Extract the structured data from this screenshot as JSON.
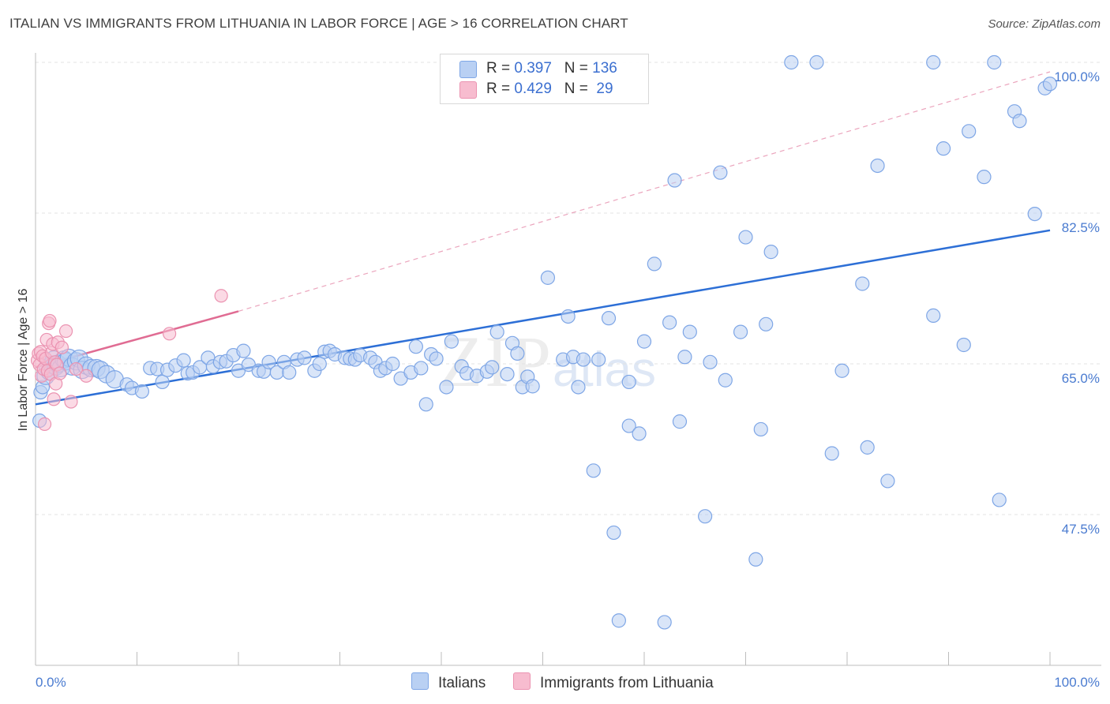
{
  "title": "ITALIAN VS IMMIGRANTS FROM LITHUANIA IN LABOR FORCE | AGE > 16 CORRELATION CHART",
  "source": "Source: ZipAtlas.com",
  "watermark": {
    "zip": "ZIP",
    "atlas": "atlas"
  },
  "colors": {
    "blue": "#4a86e8",
    "blue_fill": "#b9d0f3",
    "pink": "#e8709a",
    "pink_fill": "#f7bccf",
    "tick": "#4a7bd0"
  },
  "legend": {
    "rows": [
      {
        "r_label": "R = ",
        "r_value": "0.397",
        "n_label": "N = ",
        "n_value": "136"
      },
      {
        "r_label": "R = ",
        "r_value": "0.429",
        "n_label": "N = ",
        "n_value": " 29"
      }
    ]
  },
  "bottom_legend": {
    "italians": "Italians",
    "lithuania": "Immigrants from Lithuania"
  },
  "chart_data": {
    "type": "scatter",
    "title": "ITALIAN VS IMMIGRANTS FROM LITHUANIA IN LABOR FORCE | AGE > 16 CORRELATION CHART",
    "xlabel": "",
    "ylabel": "In Labor Force | Age > 16",
    "x_tick_labels": [
      "0.0%",
      "100.0%"
    ],
    "y_tick_labels": [
      "100.0%",
      "82.5%",
      "65.0%",
      "47.5%"
    ],
    "y_ticks": [
      100.0,
      82.5,
      65.0,
      47.5
    ],
    "xlim": [
      0,
      100
    ],
    "ylim": [
      30,
      102
    ],
    "grid": true,
    "legend_position": "top-center",
    "series": [
      {
        "name": "Italians",
        "color": "#4a86e8",
        "trend": {
          "x": [
            0,
            100
          ],
          "y": [
            60.3,
            80.5
          ]
        },
        "points": [
          [
            0.4,
            58.4
          ],
          [
            0.5,
            61.7
          ],
          [
            0.7,
            62.3
          ],
          [
            1.0,
            63.6
          ],
          [
            1.2,
            64.6
          ],
          [
            1.4,
            64.1
          ],
          [
            1.6,
            64.9
          ],
          [
            1.8,
            65.5
          ],
          [
            2.0,
            64.7
          ],
          [
            2.2,
            65.0
          ],
          [
            2.5,
            64.5
          ],
          [
            2.8,
            65.5
          ],
          [
            3.0,
            65.3
          ],
          [
            3.3,
            65.7
          ],
          [
            3.6,
            64.7
          ],
          [
            4.0,
            65.3
          ],
          [
            4.3,
            65.6
          ],
          [
            4.6,
            64.3
          ],
          [
            5.0,
            64.8
          ],
          [
            5.5,
            64.5
          ],
          [
            6.0,
            64.5
          ],
          [
            6.4,
            64.3
          ],
          [
            7.0,
            63.8
          ],
          [
            7.8,
            63.2
          ],
          [
            9.0,
            62.6
          ],
          [
            9.5,
            62.2
          ],
          [
            10.5,
            61.8
          ],
          [
            11.3,
            64.5
          ],
          [
            12.0,
            64.4
          ],
          [
            12.5,
            62.9
          ],
          [
            13.0,
            64.3
          ],
          [
            13.8,
            64.8
          ],
          [
            14.6,
            65.4
          ],
          [
            15.0,
            63.9
          ],
          [
            15.5,
            64.0
          ],
          [
            16.2,
            64.6
          ],
          [
            17.0,
            65.7
          ],
          [
            17.5,
            64.7
          ],
          [
            18.2,
            65.2
          ],
          [
            18.8,
            65.3
          ],
          [
            19.5,
            66.0
          ],
          [
            20.0,
            64.2
          ],
          [
            20.5,
            66.5
          ],
          [
            21.0,
            64.9
          ],
          [
            22.0,
            64.2
          ],
          [
            22.5,
            64.1
          ],
          [
            23.0,
            65.2
          ],
          [
            23.8,
            64.0
          ],
          [
            24.5,
            65.2
          ],
          [
            25.0,
            64.0
          ],
          [
            25.8,
            65.5
          ],
          [
            26.5,
            65.7
          ],
          [
            27.5,
            64.2
          ],
          [
            28.0,
            65.0
          ],
          [
            28.5,
            66.4
          ],
          [
            29.0,
            66.5
          ],
          [
            29.5,
            66.1
          ],
          [
            30.5,
            65.7
          ],
          [
            31.0,
            65.6
          ],
          [
            31.5,
            65.5
          ],
          [
            32.0,
            66.0
          ],
          [
            33.0,
            65.7
          ],
          [
            33.5,
            65.2
          ],
          [
            34.0,
            64.2
          ],
          [
            34.5,
            64.5
          ],
          [
            35.2,
            65.0
          ],
          [
            36.0,
            63.3
          ],
          [
            37.0,
            64.0
          ],
          [
            37.5,
            67.0
          ],
          [
            38.0,
            64.5
          ],
          [
            38.5,
            60.3
          ],
          [
            39.0,
            66.1
          ],
          [
            39.5,
            65.6
          ],
          [
            40.5,
            62.3
          ],
          [
            41.0,
            67.6
          ],
          [
            42.0,
            64.7
          ],
          [
            42.5,
            63.9
          ],
          [
            43.5,
            63.6
          ],
          [
            44.5,
            64.1
          ],
          [
            45.0,
            64.6
          ],
          [
            45.5,
            68.7
          ],
          [
            46.5,
            63.8
          ],
          [
            47.0,
            67.4
          ],
          [
            47.5,
            66.2
          ],
          [
            48.0,
            62.3
          ],
          [
            48.5,
            63.5
          ],
          [
            49.0,
            62.4
          ],
          [
            50.5,
            75.0
          ],
          [
            52.0,
            65.5
          ],
          [
            52.5,
            70.5
          ],
          [
            53.0,
            65.8
          ],
          [
            53.5,
            62.3
          ],
          [
            54.0,
            65.5
          ],
          [
            55.0,
            52.6
          ],
          [
            55.5,
            65.5
          ],
          [
            56.5,
            70.3
          ],
          [
            57.0,
            45.4
          ],
          [
            57.5,
            35.2
          ],
          [
            58.5,
            57.8
          ],
          [
            58.5,
            62.9
          ],
          [
            59.5,
            56.9
          ],
          [
            60.0,
            67.6
          ],
          [
            61.0,
            76.6
          ],
          [
            62.0,
            35.0
          ],
          [
            62.5,
            69.8
          ],
          [
            63.0,
            86.3
          ],
          [
            63.5,
            58.3
          ],
          [
            64.0,
            65.8
          ],
          [
            64.5,
            68.7
          ],
          [
            66.0,
            47.3
          ],
          [
            66.5,
            65.2
          ],
          [
            67.5,
            87.2
          ],
          [
            68.0,
            63.1
          ],
          [
            69.5,
            68.7
          ],
          [
            70.0,
            79.7
          ],
          [
            71.0,
            42.3
          ],
          [
            71.5,
            57.4
          ],
          [
            72.0,
            69.6
          ],
          [
            72.5,
            78.0
          ],
          [
            74.5,
            100.0
          ],
          [
            77.0,
            100.0
          ],
          [
            78.5,
            54.6
          ],
          [
            79.5,
            64.2
          ],
          [
            81.5,
            74.3
          ],
          [
            82.0,
            55.3
          ],
          [
            83.0,
            88.0
          ],
          [
            84.0,
            51.4
          ],
          [
            88.5,
            100.0
          ],
          [
            88.5,
            70.6
          ],
          [
            89.5,
            90.0
          ],
          [
            91.5,
            67.2
          ],
          [
            93.5,
            86.7
          ],
          [
            94.5,
            100.0
          ],
          [
            95.0,
            49.2
          ],
          [
            96.5,
            94.3
          ],
          [
            98.5,
            82.4
          ],
          [
            99.5,
            97.0
          ],
          [
            97.0,
            93.2
          ],
          [
            92.0,
            92.0
          ],
          [
            100.0,
            97.5
          ]
        ]
      },
      {
        "name": "Immigrants from Lithuania",
        "color": "#e8709a",
        "trend": {
          "x": [
            0,
            20
          ],
          "y": [
            64.6,
            71.1
          ]
        },
        "trend_extension": {
          "x": [
            20,
            100
          ],
          "y": [
            71.1,
            98.9
          ]
        },
        "points": [
          [
            0.2,
            65.4
          ],
          [
            0.3,
            66.2
          ],
          [
            0.4,
            64.9
          ],
          [
            0.5,
            66.4
          ],
          [
            0.6,
            63.6
          ],
          [
            0.7,
            65.9
          ],
          [
            0.8,
            64.4
          ],
          [
            0.9,
            58.0
          ],
          [
            1.0,
            65.6
          ],
          [
            1.1,
            67.8
          ],
          [
            1.2,
            64.2
          ],
          [
            1.3,
            69.7
          ],
          [
            1.4,
            70.0
          ],
          [
            1.5,
            63.8
          ],
          [
            1.6,
            66.3
          ],
          [
            1.7,
            67.3
          ],
          [
            1.8,
            60.9
          ],
          [
            1.9,
            65.2
          ],
          [
            2.0,
            62.7
          ],
          [
            2.1,
            64.9
          ],
          [
            2.2,
            67.5
          ],
          [
            2.4,
            63.9
          ],
          [
            2.6,
            66.9
          ],
          [
            3.0,
            68.8
          ],
          [
            3.5,
            60.6
          ],
          [
            4.0,
            64.4
          ],
          [
            5.0,
            63.6
          ],
          [
            13.2,
            68.5
          ],
          [
            18.3,
            72.9
          ]
        ]
      }
    ]
  }
}
